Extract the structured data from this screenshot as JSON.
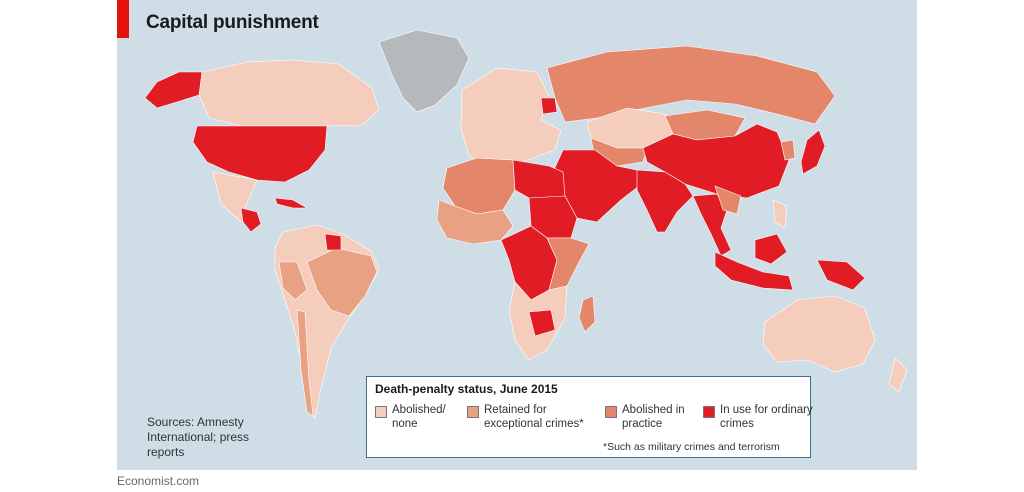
{
  "title": "Capital punishment",
  "colors": {
    "ocean": "#cfdde6",
    "abolished": "#f5cdbd",
    "retained_exceptional": "#e8a183",
    "abolished_practice": "#e3866a",
    "in_use": "#e21c25",
    "no_data": "#b5b9bc",
    "accent": "#e3120b"
  },
  "legend": {
    "title": "Death-penalty status, June 2015",
    "items": [
      {
        "label": "Abolished/ none",
        "color": "#f5cdbd"
      },
      {
        "label": "Retained for exceptional crimes*",
        "color": "#e8a183"
      },
      {
        "label": "Abolished in practice",
        "color": "#e3866a"
      },
      {
        "label": "In use for ordinary crimes",
        "color": "#e21c25"
      }
    ],
    "note": "*Such as military crimes and terrorism"
  },
  "source": "Sources: Amnesty International; press reports",
  "footer": "Economist.com",
  "regions": [
    {
      "name": "greenland",
      "status": "no_data"
    },
    {
      "name": "canada",
      "status": "abolished"
    },
    {
      "name": "alaska",
      "status": "in_use"
    },
    {
      "name": "usa",
      "status": "in_use"
    },
    {
      "name": "mexico",
      "status": "abolished"
    },
    {
      "name": "guatemala",
      "status": "in_use"
    },
    {
      "name": "cuba",
      "status": "in_use"
    },
    {
      "name": "guyana",
      "status": "in_use"
    },
    {
      "name": "south-america",
      "status": "abolished"
    },
    {
      "name": "brazil",
      "status": "retained_exceptional"
    },
    {
      "name": "peru",
      "status": "retained_exceptional"
    },
    {
      "name": "chile",
      "status": "retained_exceptional"
    },
    {
      "name": "europe",
      "status": "abolished"
    },
    {
      "name": "belarus",
      "status": "in_use"
    },
    {
      "name": "russia",
      "status": "abolished_practice"
    },
    {
      "name": "kazakhstan",
      "status": "abolished"
    },
    {
      "name": "central-asia",
      "status": "abolished_practice"
    },
    {
      "name": "mongolia",
      "status": "abolished_practice"
    },
    {
      "name": "china",
      "status": "in_use"
    },
    {
      "name": "korea",
      "status": "abolished_practice"
    },
    {
      "name": "japan",
      "status": "in_use"
    },
    {
      "name": "middle-east",
      "status": "in_use"
    },
    {
      "name": "india",
      "status": "in_use"
    },
    {
      "name": "southeast-asia",
      "status": "in_use"
    },
    {
      "name": "indochina",
      "status": "abolished_practice"
    },
    {
      "name": "indonesia",
      "status": "in_use"
    },
    {
      "name": "borneo",
      "status": "in_use"
    },
    {
      "name": "papua",
      "status": "in_use"
    },
    {
      "name": "philippines",
      "status": "abolished"
    },
    {
      "name": "north-africa",
      "status": "abolished_practice"
    },
    {
      "name": "egypt-libya",
      "status": "in_use"
    },
    {
      "name": "sudan",
      "status": "in_use"
    },
    {
      "name": "west-africa",
      "status": "retained_exceptional"
    },
    {
      "name": "central-africa",
      "status": "in_use"
    },
    {
      "name": "east-africa",
      "status": "abolished_practice"
    },
    {
      "name": "southern-africa",
      "status": "abolished"
    },
    {
      "name": "zimbabwe",
      "status": "in_use"
    },
    {
      "name": "madagascar",
      "status": "abolished_practice"
    },
    {
      "name": "australia",
      "status": "abolished"
    },
    {
      "name": "new-zealand",
      "status": "abolished"
    }
  ]
}
